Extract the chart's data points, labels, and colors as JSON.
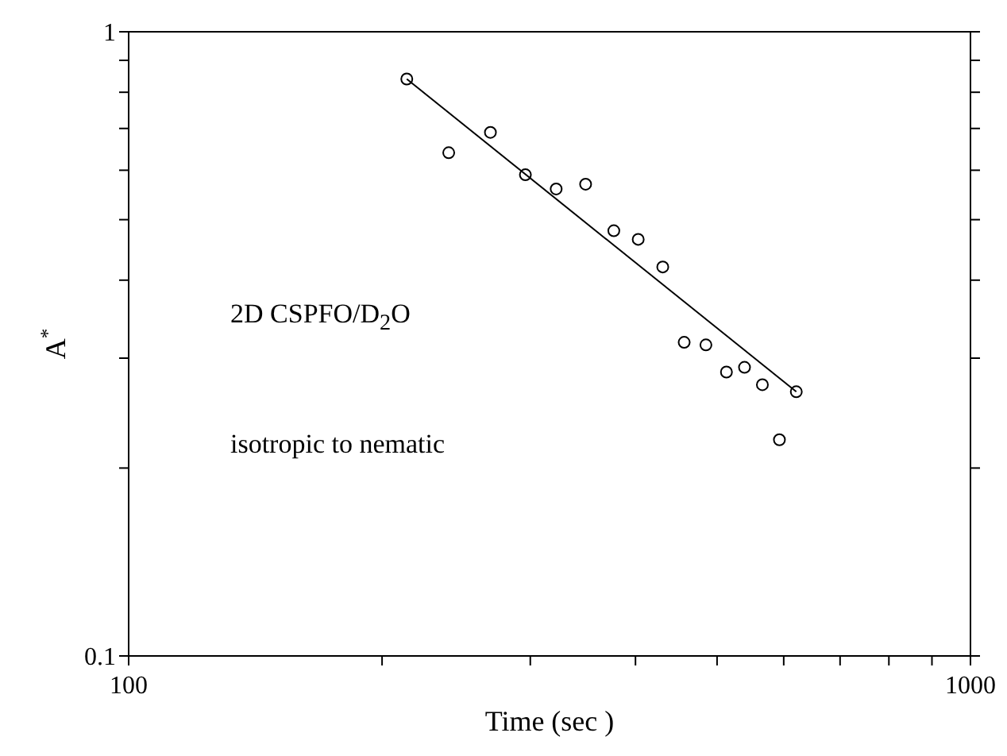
{
  "chart_data": {
    "type": "scatter",
    "xlabel": "Time (sec )",
    "ylabel": "A$^{*}$",
    "log": "xy",
    "xlim": [
      100,
      1000
    ],
    "ylim": [
      0.1,
      1
    ],
    "xticks": [
      100,
      {
        "value": 200,
        "label": null
      },
      {
        "value": 300,
        "label": null
      },
      {
        "value": 400,
        "label": null
      },
      {
        "value": 500,
        "label": null
      },
      {
        "value": 600,
        "label": null
      },
      {
        "value": 700,
        "label": null
      },
      {
        "value": 800,
        "label": null
      },
      {
        "value": 900,
        "label": null
      },
      1000
    ],
    "yticks": [
      0.1,
      {
        "value": 0.2,
        "label": null
      },
      {
        "value": 0.3,
        "label": null
      },
      {
        "value": 0.4,
        "label": null
      },
      {
        "value": 0.5,
        "label": null
      },
      {
        "value": 0.6,
        "label": null
      },
      {
        "value": 0.7,
        "label": null
      },
      {
        "value": 0.8,
        "label": null
      },
      {
        "value": 0.9,
        "label": null
      },
      1
    ],
    "annotations": [
      "2D CSPFO/D$_{2}$O",
      "isotropic to nematic"
    ],
    "series": [
      {
        "marker": "circle",
        "color": "#000000",
        "x": [
          214,
          240,
          269,
          296,
          322,
          349,
          377,
          403,
          431,
          457,
          485,
          513,
          539,
          566,
          593,
          621
        ],
        "values": [
          0.84,
          0.64,
          0.69,
          0.59,
          0.56,
          0.57,
          0.48,
          0.465,
          0.42,
          0.318,
          0.315,
          0.285,
          0.29,
          0.272,
          0.222,
          0.265
        ]
      },
      {
        "type": "line",
        "marker": "none",
        "line_style": "solid",
        "color": "#000000",
        "x": [
          214,
          621
        ],
        "values": [
          0.84,
          0.265
        ]
      }
    ]
  }
}
